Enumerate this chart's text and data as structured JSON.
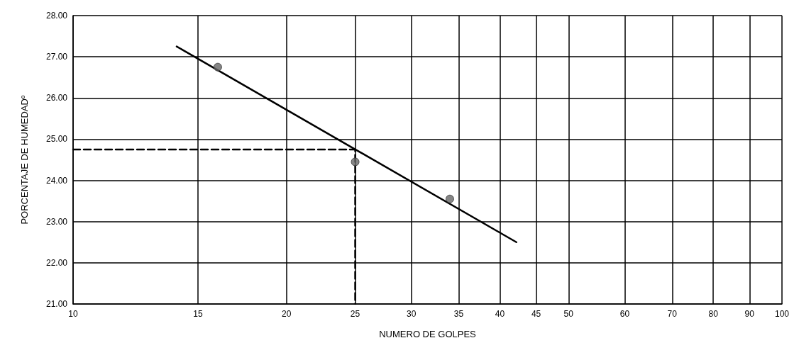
{
  "chart_data": {
    "type": "scatter",
    "xlabel": "NUMERO DE GOLPES",
    "ylabel": "PORCENTAJE DE HUMEDADº",
    "log": "x",
    "grid": true,
    "xlim": [
      10,
      100
    ],
    "xticks": [
      10,
      15,
      20,
      25,
      30,
      35,
      40,
      45,
      50,
      60,
      70,
      80,
      90,
      100
    ],
    "ylim": [
      21,
      28
    ],
    "yticks": [
      {
        "value": 21,
        "label": "21.00"
      },
      {
        "value": 22,
        "label": "22.00"
      },
      {
        "value": 23,
        "label": "23.00"
      },
      {
        "value": 24,
        "label": "24.00"
      },
      {
        "value": 25,
        "label": "25.00"
      },
      {
        "value": 26,
        "label": "26.00"
      },
      {
        "value": 27,
        "label": "27.00"
      },
      {
        "value": 28,
        "label": "28.00"
      }
    ],
    "series": [
      {
        "type": "line",
        "color": "#000000",
        "marker": "none",
        "line_style": "dashed",
        "x": [
          10,
          25,
          25
        ],
        "values": [
          24.75,
          24.75,
          21
        ]
      },
      {
        "type": "line",
        "color": "#000000",
        "marker": "none",
        "line_style": "solid",
        "x": [
          14,
          42.2
        ],
        "values": [
          27.25,
          22.5
        ]
      },
      {
        "color": "#666666",
        "marker": "circle",
        "x": [
          16,
          25,
          34
        ],
        "values": [
          26.75,
          24.45,
          23.55
        ]
      }
    ]
  }
}
